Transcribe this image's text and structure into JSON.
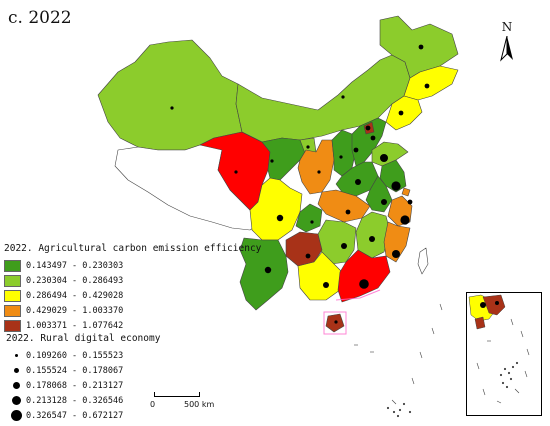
{
  "title": "c. 2022",
  "north_arrow": {
    "label": "N"
  },
  "legend_efficiency": {
    "title": "2022. Agricultural carbon emission efficiency",
    "classes": [
      {
        "label": "0.143497 - 0.230303",
        "color": "#3f9d1c"
      },
      {
        "label": "0.230304 - 0.286493",
        "color": "#8ccc2c"
      },
      {
        "label": "0.286494 - 0.429028",
        "color": "#ffff00"
      },
      {
        "label": "0.429029 - 1.003370",
        "color": "#f08c14"
      },
      {
        "label": "1.003371 - 1.077642",
        "color": "#a83218"
      }
    ]
  },
  "legend_digital": {
    "title": "2022. Rural digital economy",
    "classes": [
      {
        "label": "0.109260 - 0.155523",
        "size": 1
      },
      {
        "label": "0.155524 - 0.178067",
        "size": 2
      },
      {
        "label": "0.178068 - 0.213127",
        "size": 3
      },
      {
        "label": "0.213128 - 0.326546",
        "size": 4
      },
      {
        "label": "0.326547 - 0.672127",
        "size": 5
      }
    ]
  },
  "scale_bar": {
    "start": "0",
    "end": "500 km"
  },
  "highlight_color": "#ff0000"
}
